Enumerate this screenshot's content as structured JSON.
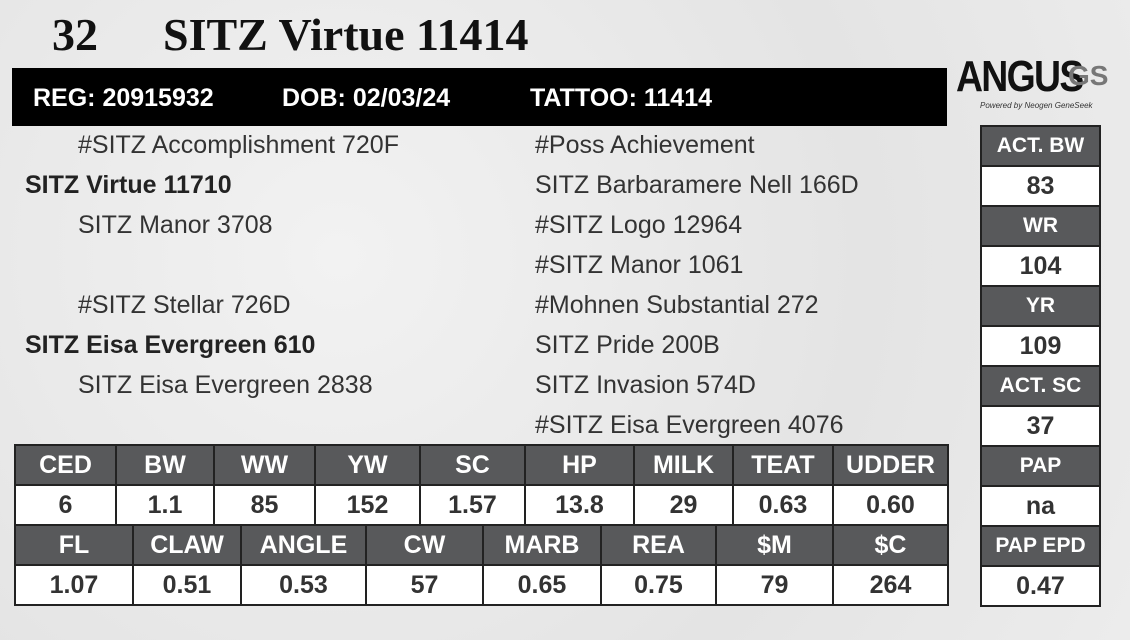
{
  "header": {
    "lot": "32",
    "name": "SITZ Virtue 11414"
  },
  "id_bar": {
    "reg": "REG: 20915932",
    "dob": "DOB: 02/03/24",
    "tattoo": "TATTOO: 11414"
  },
  "logo": {
    "brand": "ANGUS",
    "suffix": "GS",
    "tagline": "Powered by Neogen GeneSeek"
  },
  "pedigree": {
    "sire_side": [
      "#SITZ Accomplishment 720F",
      "SITZ Virtue 11710",
      "SITZ Manor 3708"
    ],
    "dam_side": [
      "#SITZ Stellar 726D",
      "SITZ Eisa Evergreen 610",
      "SITZ Eisa Evergreen 2838"
    ],
    "outer": [
      "#Poss Achievement",
      "SITZ Barbaramere Nell 166D",
      "#SITZ Logo 12964",
      "#SITZ Manor 1061",
      "#Mohnen Substantial 272",
      "SITZ Pride 200B",
      "SITZ Invasion 574D",
      "#SITZ Eisa Evergreen 4076"
    ]
  },
  "epd_rows": [
    {
      "headers": [
        "CED",
        "BW",
        "WW",
        "YW",
        "SC",
        "HP",
        "MILK",
        "TEAT",
        "UDDER"
      ],
      "values": [
        "6",
        "1.1",
        "85",
        "152",
        "1.57",
        "13.8",
        "29",
        "0.63",
        "0.60"
      ]
    },
    {
      "headers": [
        "FL",
        "CLAW",
        "ANGLE",
        "CW",
        "MARB",
        "REA",
        "$M",
        "$C"
      ],
      "values": [
        "1.07",
        "0.51",
        "0.53",
        "57",
        "0.65",
        "0.75",
        "79",
        "264"
      ]
    }
  ],
  "side_stats": [
    {
      "label": "ACT. BW",
      "value": "83"
    },
    {
      "label": "WR",
      "value": "104"
    },
    {
      "label": "YR",
      "value": "109"
    },
    {
      "label": "ACT. SC",
      "value": "37"
    },
    {
      "label": "PAP",
      "value": "na"
    },
    {
      "label": "PAP EPD",
      "value": "0.47"
    }
  ]
}
